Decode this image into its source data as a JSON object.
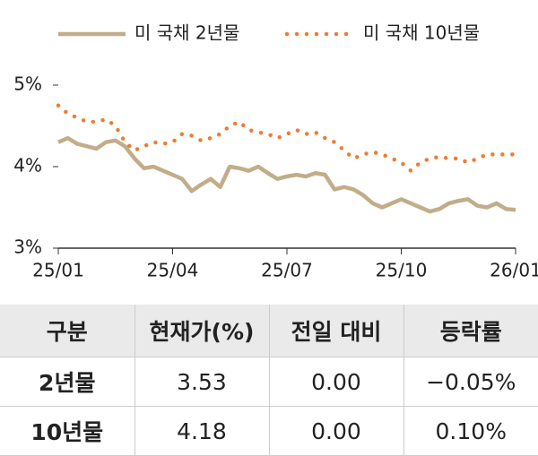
{
  "chart_data": {
    "type": "line",
    "x": [
      0,
      0.25,
      0.5,
      0.75,
      1,
      1.25,
      1.5,
      1.75,
      2,
      2.25,
      2.5,
      2.75,
      3,
      3.25,
      3.5,
      3.75,
      4,
      4.25,
      4.5,
      4.75,
      5,
      5.25,
      5.5,
      5.75,
      6,
      6.25,
      6.5,
      6.75,
      7,
      7.25,
      7.5,
      7.75,
      8,
      8.25,
      8.5,
      8.75,
      9,
      9.25,
      9.5,
      9.75,
      10,
      10.25,
      10.5,
      10.75,
      11,
      11.25,
      11.5,
      11.75,
      12
    ],
    "series": [
      {
        "name": "미 국채 2년물",
        "color": "#c2ad8a",
        "style": "solid",
        "values": [
          4.3,
          4.35,
          4.28,
          4.25,
          4.22,
          4.3,
          4.32,
          4.25,
          4.1,
          3.98,
          4.0,
          3.95,
          3.9,
          3.85,
          3.7,
          3.78,
          3.85,
          3.75,
          4.0,
          3.98,
          3.95,
          4.0,
          3.92,
          3.85,
          3.88,
          3.9,
          3.88,
          3.92,
          3.9,
          3.72,
          3.75,
          3.72,
          3.65,
          3.55,
          3.5,
          3.55,
          3.6,
          3.55,
          3.5,
          3.45,
          3.48,
          3.55,
          3.58,
          3.6,
          3.52,
          3.5,
          3.55,
          3.48,
          3.47
        ]
      },
      {
        "name": "미 국채 10년물",
        "color": "#ed7d31",
        "style": "dotted",
        "values": [
          4.75,
          4.65,
          4.6,
          4.55,
          4.55,
          4.58,
          4.5,
          4.3,
          4.2,
          4.25,
          4.3,
          4.28,
          4.3,
          4.4,
          4.38,
          4.32,
          4.35,
          4.4,
          4.5,
          4.55,
          4.45,
          4.42,
          4.4,
          4.35,
          4.4,
          4.45,
          4.4,
          4.42,
          4.35,
          4.3,
          4.2,
          4.1,
          4.15,
          4.18,
          4.15,
          4.1,
          4.05,
          3.95,
          4.05,
          4.1,
          4.12,
          4.1,
          4.1,
          4.05,
          4.1,
          4.15,
          4.15,
          4.15,
          4.15
        ]
      }
    ],
    "xlim": [
      0,
      12
    ],
    "xticks": [
      {
        "value": 0,
        "label": "25/01"
      },
      {
        "value": 3,
        "label": "25/04"
      },
      {
        "value": 6,
        "label": "25/07"
      },
      {
        "value": 9,
        "label": "25/10"
      },
      {
        "value": 12,
        "label": "26/01"
      }
    ],
    "ylim": [
      3,
      5
    ],
    "yticks": [
      {
        "value": 3,
        "label": "3%"
      },
      {
        "value": 4,
        "label": "4%"
      },
      {
        "value": 5,
        "label": "5%"
      }
    ],
    "grid": false
  },
  "table": {
    "header": [
      "구분",
      "현재가(%)",
      "전일 대비",
      "등락률"
    ],
    "rows": [
      [
        "2년물",
        "3.53",
        "0.00",
        "−0.05%"
      ],
      [
        "10년물",
        "4.18",
        "0.00",
        "0.10%"
      ]
    ]
  }
}
